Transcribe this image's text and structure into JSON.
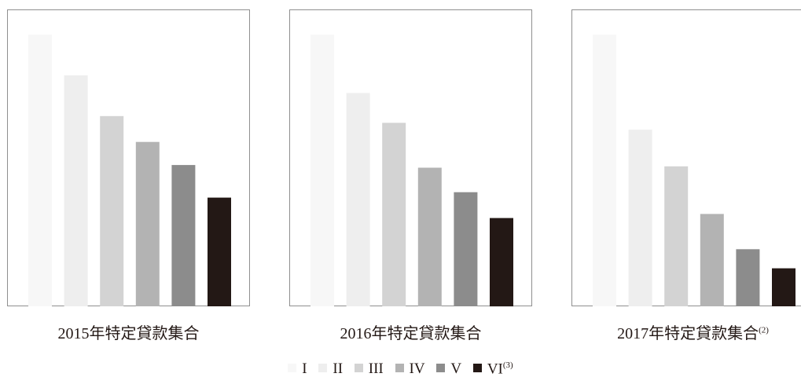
{
  "chart_data": {
    "type": "bar",
    "series_names": [
      "I",
      "II",
      "III",
      "IV",
      "V",
      "VI"
    ],
    "colors": [
      "#f7f7f7",
      "#eeeeee",
      "#d3d3d3",
      "#b3b3b3",
      "#8c8c8c",
      "#231815"
    ],
    "ylim": [
      0,
      100
    ],
    "grid": false,
    "legend_position": "bottom-center",
    "charts": [
      {
        "title": "2015年特定貸款集合",
        "values": [
          100,
          85,
          70,
          60.5,
          52,
          40
        ]
      },
      {
        "title": "2016年特定貸款集合",
        "values": [
          100,
          78.5,
          67.5,
          51,
          42,
          32.5
        ]
      },
      {
        "title": "2017年特定貸款集合",
        "note": "(2)",
        "values": [
          100,
          65,
          51.5,
          34,
          21,
          14
        ]
      }
    ]
  },
  "legend": [
    {
      "label": "I",
      "note": ""
    },
    {
      "label": "II",
      "note": ""
    },
    {
      "label": "III",
      "note": ""
    },
    {
      "label": "IV",
      "note": ""
    },
    {
      "label": "V",
      "note": ""
    },
    {
      "label": "VI",
      "note": "(3)"
    }
  ]
}
